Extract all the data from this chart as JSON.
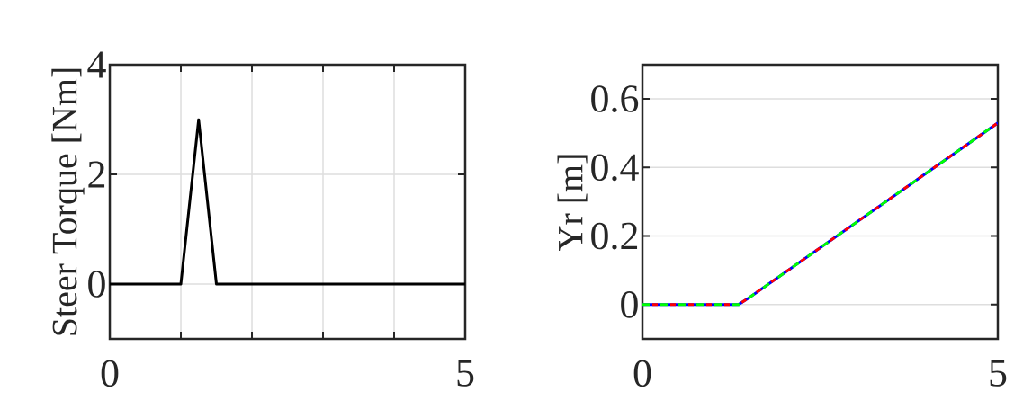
{
  "chart_data": [
    {
      "type": "line",
      "ylabel": "Steer Torque [Nm]",
      "x": [
        0,
        1,
        1.25,
        1.5,
        5
      ],
      "xlim": [
        0,
        5
      ],
      "ylim": [
        -1,
        4
      ],
      "xticks": [
        0,
        {
          "value": 1,
          "label": null
        },
        {
          "value": 2,
          "label": null
        },
        {
          "value": 3,
          "label": null
        },
        {
          "value": 4,
          "label": null
        },
        5
      ],
      "yticks": [
        0,
        2,
        4
      ],
      "grid": true,
      "series": [
        {
          "color": "#000000",
          "values": [
            0,
            0,
            3,
            0,
            0
          ]
        }
      ]
    },
    {
      "type": "line",
      "ylabel": "Yr [m]",
      "x": [
        0,
        1.35,
        1.5,
        5
      ],
      "xlim": [
        0,
        5
      ],
      "ylim": [
        -0.1,
        0.7
      ],
      "xticks": [
        0,
        5
      ],
      "yticks": [
        0,
        0.2,
        0.4,
        0.6
      ],
      "grid": "y",
      "series": [
        {
          "color": "#0000ff",
          "line_style": "solid",
          "values": [
            0,
            0,
            0.02,
            0.53
          ]
        },
        {
          "color": "#ff0000",
          "line_style": "dashed",
          "values": [
            0,
            0,
            0.02,
            0.53
          ]
        },
        {
          "color": "#00ff00",
          "line_style": "dashed",
          "values": [
            0,
            0,
            0.02,
            0.53
          ]
        }
      ]
    }
  ]
}
